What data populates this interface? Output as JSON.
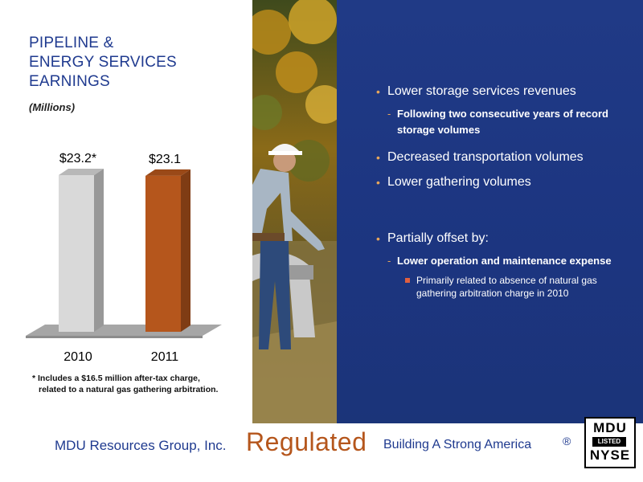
{
  "title_lines": [
    "PIPELINE &",
    "ENERGY SERVICES",
    "EARNINGS"
  ],
  "units": "(Millions)",
  "footnote": {
    "line1": "* Includes a $16.5 million after-tax charge,",
    "line2": "related to a natural gas gathering arbitration."
  },
  "bullets": {
    "b1": "Lower storage services revenues",
    "b1_sub": "Following two consecutive years of record storage volumes",
    "b2": "Decreased transportation volumes",
    "b3": "Lower gathering volumes",
    "b4": "Partially offset by:",
    "b4_sub": "Lower operation and maintenance expense",
    "b4_subsub": "Primarily related to absence of natural gas gathering arbitration charge in 2010",
    "dot": "•",
    "dash": "-"
  },
  "footer": {
    "company": "MDU Resources Group, Inc.",
    "regulated": "Regulated",
    "tagline": "Building A Strong America",
    "reg_mark": "®"
  },
  "logo": {
    "top": "MDU",
    "middle": "LISTED",
    "bottom": "NYSE"
  },
  "colors": {
    "title_blue": "#1f3a8f",
    "panel_blue": "#1c3580",
    "accent_orange": "#b5561c",
    "bar_2010": "#d9d9d9",
    "bar_2011": "#b5561c"
  },
  "chart_data": {
    "type": "bar",
    "categories": [
      "2010",
      "2011"
    ],
    "values": [
      23.2,
      23.1
    ],
    "data_labels": [
      "$23.2*",
      "$23.1"
    ],
    "colors": [
      "#d9d9d9",
      "#b5561c"
    ],
    "ylim": [
      0,
      23.2
    ],
    "grid": false,
    "legend": "none"
  }
}
